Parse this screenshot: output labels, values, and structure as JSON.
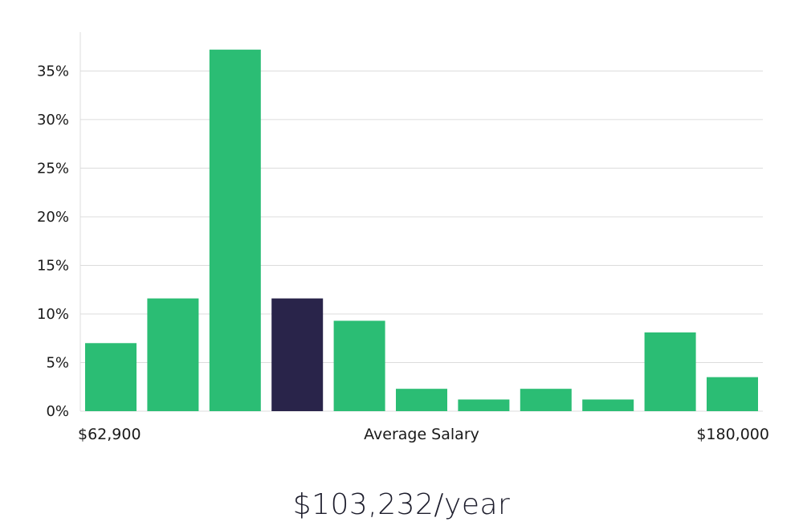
{
  "chart_data": {
    "type": "bar",
    "title": "",
    "xlabel": "Average Salary",
    "ylabel": "",
    "x_min_label": "$62,900",
    "x_max_label": "$180,000",
    "ylim": [
      0,
      39
    ],
    "yticks": [
      0,
      5,
      10,
      15,
      20,
      25,
      30,
      35
    ],
    "ytick_labels": [
      "0%",
      "5%",
      "10%",
      "15%",
      "20%",
      "25%",
      "30%",
      "35%"
    ],
    "values": [
      7.0,
      11.6,
      37.2,
      11.6,
      9.3,
      2.3,
      1.2,
      2.3,
      1.2,
      8.1,
      3.5
    ],
    "highlight_index": 3,
    "grid": true,
    "legend": "none"
  },
  "colors": {
    "bar": "#2bbd74",
    "highlight": "#29244a",
    "grid": "#dcdcdc",
    "axis_text": "#1a1a1a"
  },
  "headline": "$103,232/year"
}
